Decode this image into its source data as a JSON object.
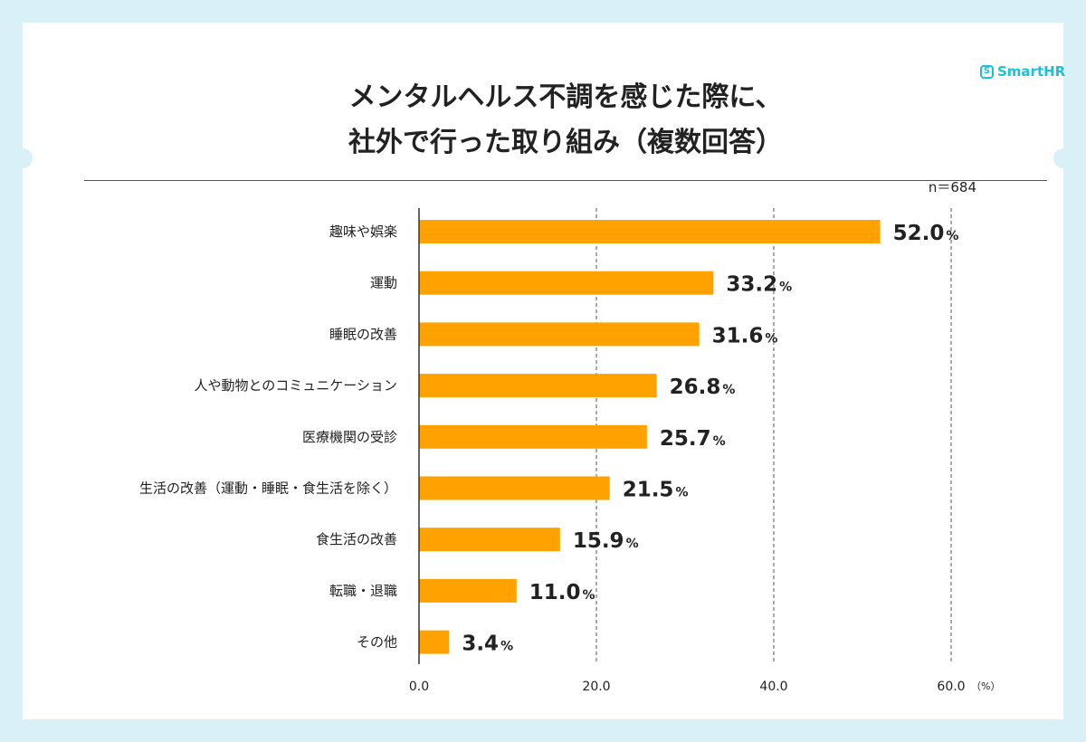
{
  "brand": {
    "logo_text": "SmartHR",
    "logo_mark": "S",
    "accent_color": "#19c2d6"
  },
  "title_lines": [
    "メンタルヘルス不調を感じた際に、",
    "社外で行った取り組み（複数回答）"
  ],
  "chart_data": {
    "type": "bar",
    "orientation": "horizontal",
    "sample_size_label": "n＝684",
    "categories": [
      "趣味や娯楽",
      "運動",
      "睡眠の改善",
      "人や動物とのコミュニケーション",
      "医療機関の受診",
      "生活の改善（運動・睡眠・食生活を除く）",
      "食生活の改善",
      "転職・退職",
      "その他"
    ],
    "values": [
      52.0,
      33.2,
      31.6,
      26.8,
      25.7,
      21.5,
      15.9,
      11.0,
      3.4
    ],
    "value_labels": [
      "52.0",
      "33.2",
      "31.6",
      "26.8",
      "25.7",
      "21.5",
      "15.9",
      "11.0",
      "3.4"
    ],
    "value_suffix": "%",
    "xlim": [
      0,
      60
    ],
    "ticks": [
      0,
      20,
      40,
      60
    ],
    "tick_labels": [
      "0.0",
      "20.0",
      "40.0",
      "60.0"
    ],
    "axis_unit": "（%）",
    "bar_color": "#ffa200",
    "grid": "dashed vertical"
  }
}
